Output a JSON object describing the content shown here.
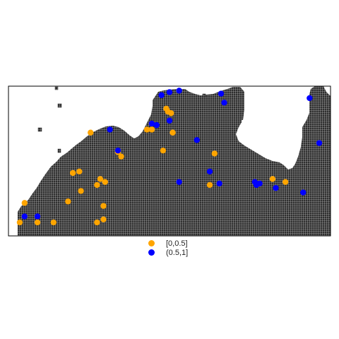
{
  "legend": {
    "items": [
      {
        "label": "[0,0.5]",
        "color": "#FFA500"
      },
      {
        "label": "(0.5,1]",
        "color": "#0000FF"
      }
    ]
  },
  "raster": {
    "cell_fill": "#2f2f2f",
    "grid_color": "#d9d9d9",
    "grid_on": true
  },
  "points": [
    {
      "x": 0.035,
      "y": 0.09,
      "class": "[0,0.5]"
    },
    {
      "x": 0.09,
      "y": 0.09,
      "class": "[0,0.5]"
    },
    {
      "x": 0.14,
      "y": 0.09,
      "class": "[0,0.5]"
    },
    {
      "x": 0.275,
      "y": 0.09,
      "class": "[0,0.5]"
    },
    {
      "x": 0.295,
      "y": 0.11,
      "class": "[0,0.5]"
    },
    {
      "x": 0.05,
      "y": 0.22,
      "class": "[0,0.5]"
    },
    {
      "x": 0.185,
      "y": 0.23,
      "class": "[0,0.5]"
    },
    {
      "x": 0.295,
      "y": 0.2,
      "class": "[0,0.5]"
    },
    {
      "x": 0.225,
      "y": 0.3,
      "class": "[0,0.5]"
    },
    {
      "x": 0.275,
      "y": 0.34,
      "class": "[0,0.5]"
    },
    {
      "x": 0.285,
      "y": 0.38,
      "class": "[0,0.5]"
    },
    {
      "x": 0.3,
      "y": 0.36,
      "class": "[0,0.5]"
    },
    {
      "x": 0.2,
      "y": 0.42,
      "class": "[0,0.5]"
    },
    {
      "x": 0.22,
      "y": 0.43,
      "class": "[0,0.5]"
    },
    {
      "x": 0.34,
      "y": 0.56,
      "class": "[0,0.5]"
    },
    {
      "x": 0.35,
      "y": 0.53,
      "class": "[0,0.5]"
    },
    {
      "x": 0.48,
      "y": 0.57,
      "class": "[0,0.5]"
    },
    {
      "x": 0.64,
      "y": 0.55,
      "class": "[0,0.5]"
    },
    {
      "x": 0.625,
      "y": 0.34,
      "class": "[0,0.5]"
    },
    {
      "x": 0.82,
      "y": 0.38,
      "class": "[0,0.5]"
    },
    {
      "x": 0.86,
      "y": 0.36,
      "class": "[0,0.5]"
    },
    {
      "x": 0.255,
      "y": 0.69,
      "class": "[0,0.5]"
    },
    {
      "x": 0.43,
      "y": 0.71,
      "class": "[0,0.5]"
    },
    {
      "x": 0.445,
      "y": 0.71,
      "class": "[0,0.5]"
    },
    {
      "x": 0.51,
      "y": 0.69,
      "class": "[0,0.5]"
    },
    {
      "x": 0.495,
      "y": 0.83,
      "class": "[0,0.5]"
    },
    {
      "x": 0.505,
      "y": 0.82,
      "class": "[0,0.5]"
    },
    {
      "x": 0.49,
      "y": 0.85,
      "class": "[0,0.5]"
    },
    {
      "x": 0.05,
      "y": 0.13,
      "class": "(0.5,1]"
    },
    {
      "x": 0.09,
      "y": 0.13,
      "class": "(0.5,1]"
    },
    {
      "x": 0.34,
      "y": 0.57,
      "class": "(0.5,1]"
    },
    {
      "x": 0.315,
      "y": 0.71,
      "class": "(0.5,1]"
    },
    {
      "x": 0.445,
      "y": 0.75,
      "class": "(0.5,1]"
    },
    {
      "x": 0.46,
      "y": 0.74,
      "class": "(0.5,1]"
    },
    {
      "x": 0.5,
      "y": 0.77,
      "class": "(0.5,1]"
    },
    {
      "x": 0.475,
      "y": 0.94,
      "class": "(0.5,1]"
    },
    {
      "x": 0.5,
      "y": 0.96,
      "class": "(0.5,1]"
    },
    {
      "x": 0.53,
      "y": 0.97,
      "class": "(0.5,1]"
    },
    {
      "x": 0.585,
      "y": 0.64,
      "class": "(0.5,1]"
    },
    {
      "x": 0.625,
      "y": 0.43,
      "class": "(0.5,1]"
    },
    {
      "x": 0.53,
      "y": 0.36,
      "class": "(0.5,1]"
    },
    {
      "x": 0.655,
      "y": 0.35,
      "class": "(0.5,1]"
    },
    {
      "x": 0.66,
      "y": 0.95,
      "class": "(0.5,1]"
    },
    {
      "x": 0.67,
      "y": 0.89,
      "class": "(0.5,1]"
    },
    {
      "x": 0.77,
      "y": 0.34,
      "class": "(0.5,1]"
    },
    {
      "x": 0.78,
      "y": 0.35,
      "class": "(0.5,1]"
    },
    {
      "x": 0.765,
      "y": 0.36,
      "class": "(0.5,1]"
    },
    {
      "x": 0.83,
      "y": 0.32,
      "class": "(0.5,1]"
    },
    {
      "x": 0.915,
      "y": 0.29,
      "class": "(0.5,1]"
    },
    {
      "x": 0.935,
      "y": 0.92,
      "class": "(0.5,1]"
    },
    {
      "x": 0.965,
      "y": 0.62,
      "class": "(0.5,1]"
    }
  ]
}
